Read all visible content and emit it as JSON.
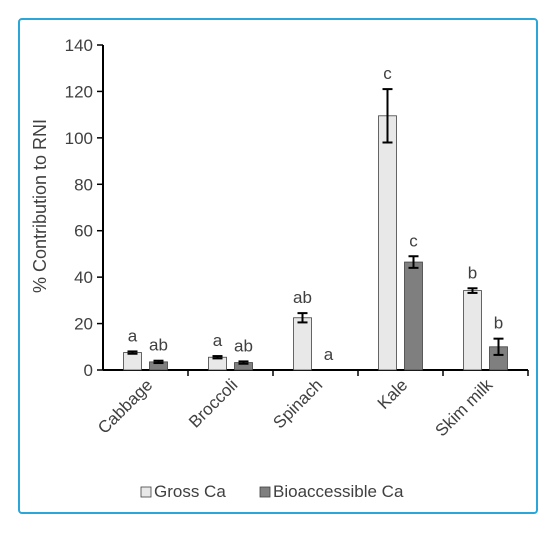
{
  "chart_data": {
    "type": "bar",
    "title": "",
    "xlabel": "",
    "ylabel": "% Contribution to RNI",
    "ylim": [
      0,
      140
    ],
    "yticks": [
      0,
      20,
      40,
      60,
      80,
      100,
      120,
      140
    ],
    "grid": false,
    "legend_position": "bottom",
    "categories": [
      "Cabbage",
      "Broccoli",
      "Spinach",
      "Kale",
      "Skim milk"
    ],
    "series": [
      {
        "name": "Gross Ca",
        "color": "#e8e8e8",
        "values": [
          7.5,
          5.5,
          22.5,
          109.5,
          34.2
        ],
        "errors": [
          0.5,
          0.5,
          2.0,
          11.5,
          1.0
        ],
        "significance": [
          "a",
          "a",
          "ab",
          "c",
          "b"
        ]
      },
      {
        "name": "Bioaccessible Ca",
        "color": "#7f7f7f",
        "values": [
          3.5,
          3.2,
          0,
          46.5,
          10.0
        ],
        "errors": [
          0.5,
          0.5,
          0,
          2.5,
          3.5
        ],
        "significance": [
          "ab",
          "ab",
          "a",
          "c",
          "b"
        ]
      }
    ]
  }
}
